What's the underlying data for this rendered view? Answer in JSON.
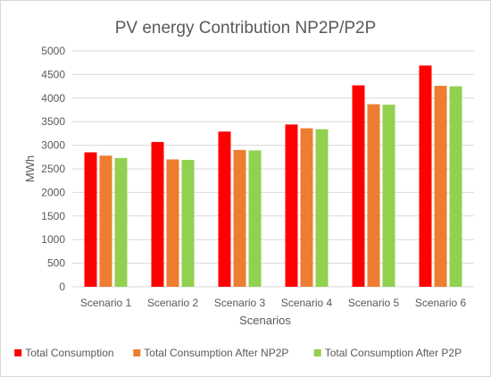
{
  "chart_data": {
    "type": "bar",
    "title": "PV energy Contribution NP2P/P2P",
    "xlabel": "Scenarios",
    "ylabel": "MWh",
    "ylim": [
      0,
      5000
    ],
    "ytick_step": 500,
    "yticks": [
      "0",
      "500",
      "1000",
      "1500",
      "2000",
      "2500",
      "3000",
      "3500",
      "4000",
      "4500",
      "5000"
    ],
    "grid": true,
    "legend_position": "bottom",
    "categories": [
      "Scenario 1",
      "Scenario 2",
      "Scenario 3",
      "Scenario 4",
      "Scenario 5",
      "Scenario 6"
    ],
    "series": [
      {
        "name": "Total Consumption",
        "color": "#ff0000",
        "values": [
          2850,
          3070,
          3290,
          3440,
          4270,
          4690
        ]
      },
      {
        "name": "Total Consumption After NP2P",
        "color": "#ed7d31",
        "values": [
          2780,
          2700,
          2900,
          3360,
          3870,
          4260
        ]
      },
      {
        "name": "Total Consumption After P2P",
        "color": "#92d050",
        "values": [
          2730,
          2690,
          2890,
          3340,
          3860,
          4250
        ]
      }
    ]
  }
}
